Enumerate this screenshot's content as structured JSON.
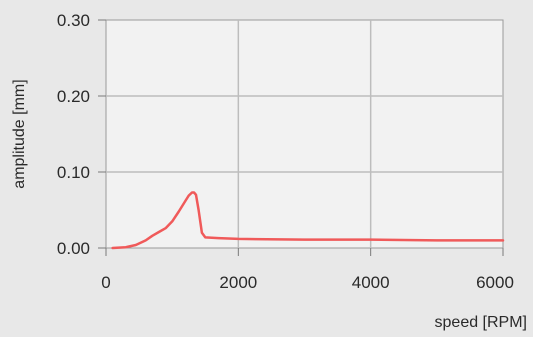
{
  "chart_data": {
    "type": "line",
    "title": "",
    "xlabel": "speed [RPM]",
    "ylabel": "amplitude [mm]",
    "xlim": [
      0,
      6000
    ],
    "ylim": [
      0,
      0.3
    ],
    "x_ticks": [
      0,
      2000,
      4000,
      6000
    ],
    "x_tick_labels": [
      "0",
      "2000",
      "4000",
      "6000"
    ],
    "y_ticks": [
      0,
      0.1,
      0.2,
      0.3
    ],
    "y_tick_labels": [
      "0.00",
      "0.10",
      "0.20",
      "0.30"
    ],
    "grid": true,
    "line_color": "#f05a5a",
    "plot_background": "#f2f2f2",
    "grid_color": "#bdbdbd",
    "series": [
      {
        "x": [
          100,
          300,
          450,
          600,
          700,
          800,
          900,
          1000,
          1100,
          1200,
          1250,
          1300,
          1330,
          1360,
          1400,
          1450,
          1500,
          1700,
          2000,
          3000,
          4000,
          5000,
          6000
        ],
        "y": [
          0.0,
          0.001,
          0.004,
          0.01,
          0.016,
          0.021,
          0.026,
          0.035,
          0.048,
          0.062,
          0.069,
          0.073,
          0.073,
          0.07,
          0.05,
          0.02,
          0.014,
          0.013,
          0.012,
          0.011,
          0.011,
          0.01,
          0.01
        ]
      }
    ]
  }
}
